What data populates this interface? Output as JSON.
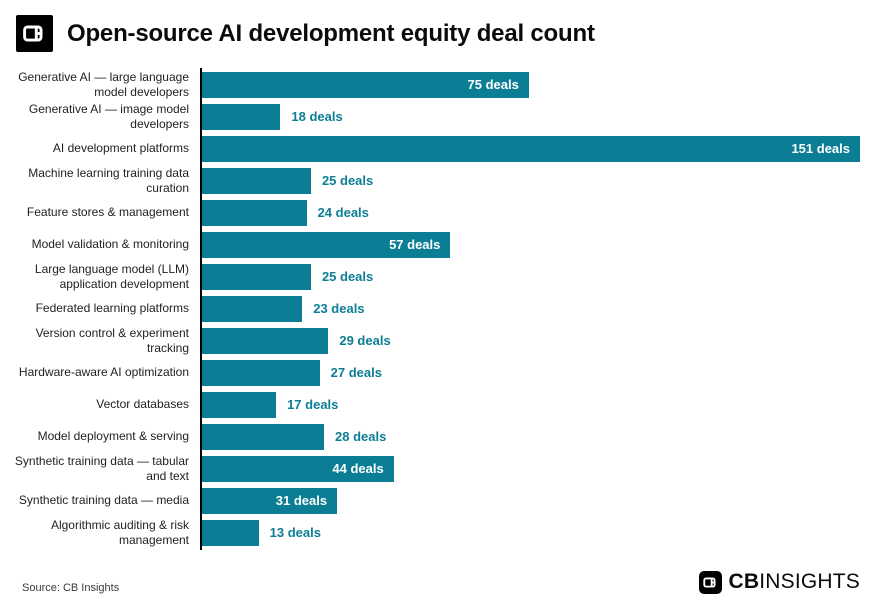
{
  "header": {
    "title": "Open-source AI development equity deal count"
  },
  "colors": {
    "bar": "#0b7e95",
    "value_outside_text": "#0b7e95",
    "value_inside_text": "#ffffff",
    "axis": "#000000",
    "category_text": "#1f1f1f"
  },
  "chart_data": {
    "type": "bar",
    "orientation": "horizontal",
    "title": "Open-source AI development equity deal count",
    "xlabel": "",
    "ylabel": "",
    "xlim": [
      0,
      151
    ],
    "grid": false,
    "legend": false,
    "unit_suffix": " deals",
    "value_label_inside_threshold": 31,
    "categories": [
      "Generative AI — large language\nmodel developers",
      "Generative AI — image model\ndevelopers",
      "AI development platforms",
      "Machine learning training data\ncuration",
      "Feature stores & management",
      "Model validation & monitoring",
      "Large language model (LLM)\napplication development",
      "Federated learning platforms",
      "Version control & experiment\ntracking",
      "Hardware-aware AI optimization",
      "Vector databases",
      "Model deployment & serving",
      "Synthetic training data — tabular\nand text",
      "Synthetic training data — media",
      "Algorithmic auditing & risk\nmanagement"
    ],
    "values": [
      75,
      18,
      151,
      25,
      24,
      57,
      25,
      23,
      29,
      27,
      17,
      28,
      44,
      31,
      13
    ],
    "value_labels": [
      "75 deals",
      "18 deals",
      "151 deals",
      "25 deals",
      "24 deals",
      "57 deals",
      "25 deals",
      "23 deals",
      "29 deals",
      "27 deals",
      "17 deals",
      "28 deals",
      "44 deals",
      "31 deals",
      "13 deals"
    ]
  },
  "footer": {
    "source": "Source: CB Insights",
    "brand_cb": "CB",
    "brand_insights": "INSIGHTS"
  }
}
